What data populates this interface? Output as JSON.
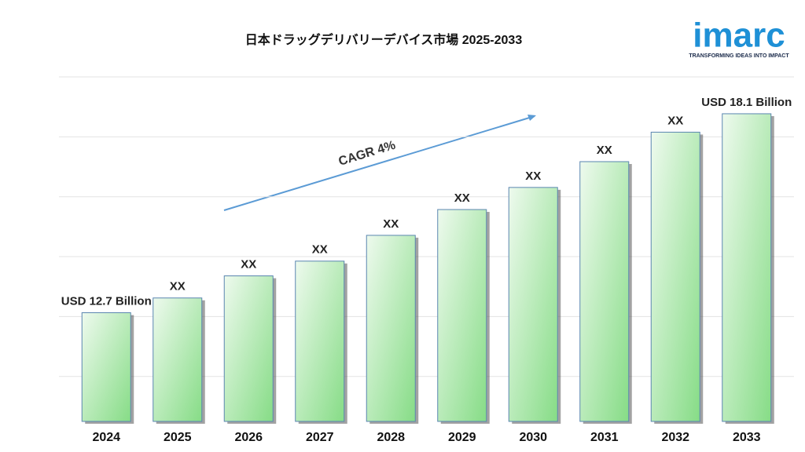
{
  "chart_data": {
    "type": "bar",
    "title": "日本ドラッグデリバリーデバイス市場 2025-2033",
    "categories": [
      "2024",
      "2025",
      "2026",
      "2027",
      "2028",
      "2029",
      "2030",
      "2031",
      "2032",
      "2033"
    ],
    "values": [
      12.7,
      13.1,
      13.7,
      14.1,
      14.8,
      15.5,
      16.1,
      16.8,
      17.6,
      18.1
    ],
    "value_labels": [
      "USD 12.7 Billion",
      "XX",
      "XX",
      "XX",
      "XX",
      "XX",
      "XX",
      "XX",
      "XX",
      "USD 18.1 Billion"
    ],
    "color": "#8fe08f",
    "ylim": [
      9.75,
      19.1
    ],
    "grid": true,
    "annotation": "CAGR 4%"
  },
  "logo": {
    "name": "imarc",
    "tagline": "TRANSFORMING IDEAS INTO IMPACT"
  }
}
